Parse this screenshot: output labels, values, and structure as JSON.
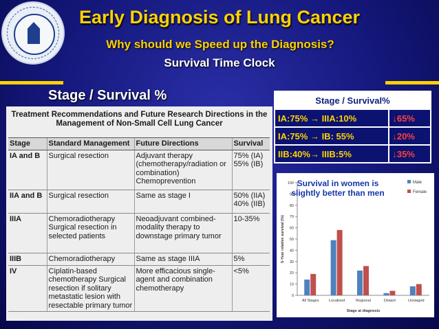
{
  "slide": {
    "title": "Early Diagnosis of Lung Cancer",
    "subtitle": "Why should we Speed up the Diagnosis?",
    "clock": "Survival Time Clock",
    "stage_heading": "Stage / Survival %",
    "seal": "university-seal"
  },
  "colors": {
    "title": "#ffd200",
    "background": "#14177a",
    "male_bar": "#4f81bd",
    "female_bar": "#c0504d",
    "decrease": "#ff4040"
  },
  "scan": {
    "title_line1": "Treatment Recommendations and Future Research Directions in the",
    "title_line2": "Management of Non-Small Cell Lung Cancer",
    "headers": [
      "Stage",
      "Standard Management",
      "Future Directions",
      "Survival"
    ],
    "rows": [
      [
        "IA and B",
        "Surgical resection",
        "Adjuvant therapy (chemotherapy/radiation or combination) Chemoprevention",
        "75% (IA) 55% (IB)"
      ],
      [
        "IIA and B",
        "Surgical resection",
        "Same as stage I",
        "50% (IIA) 40% (IIB)"
      ],
      [
        "IIIA",
        "Chemoradiotherapy Surgical resection in selected patients",
        "Neoadjuvant combined-modality therapy to downstage primary tumor",
        "10-35%"
      ],
      [
        "IIIB",
        "Chemoradiotherapy",
        "Same as stage IIIA",
        "5%"
      ],
      [
        "IV",
        "Ciplatin-based chemotherapy Surgical resection if solitary metastatic lesion with resectable primary tumor",
        "More efficacious single-agent and combination chemotherapy",
        "<5%"
      ]
    ]
  },
  "stage_survival": {
    "header": "Stage / Survival%",
    "rows": [
      {
        "comparison": "IA:75% → IIIA:10%",
        "decrease": "↓65%"
      },
      {
        "comparison": "IA:75% → IB: 55%",
        "decrease": "↓20%"
      },
      {
        "comparison": "IIB:40%→ IIIB:5%",
        "decrease": "↓35%"
      }
    ]
  },
  "chart_note_line1": "Survival in women is",
  "chart_note_line2": "slightly better than men",
  "chart_data": {
    "type": "bar",
    "categories": [
      "All Stages",
      "Localized",
      "Regional",
      "Distant",
      "Unstaged"
    ],
    "series": [
      {
        "name": "Male",
        "values": [
          14,
          49,
          22,
          2,
          8
        ]
      },
      {
        "name": "Female",
        "values": [
          19,
          58,
          26,
          4,
          10
        ]
      }
    ],
    "xlabel": "Stage at diagnosis",
    "ylabel": "5-Year relative survival (%)",
    "ylim": [
      0,
      100
    ],
    "yticks": [
      0,
      10,
      20,
      30,
      40,
      50,
      60,
      70,
      80,
      90,
      100
    ],
    "legend": "top-right",
    "grid": false
  }
}
